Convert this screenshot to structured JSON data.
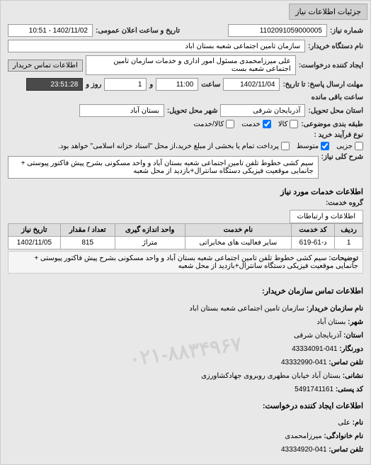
{
  "header": {
    "tab_title": "جزئیات اطلاعات نیاز"
  },
  "form": {
    "req_number_label": "شماره نیاز:",
    "req_number": "1102091059000005",
    "announce_date_label": "تاریخ و ساعت اعلان عمومی:",
    "announce_date": "1402/11/02 - 10:51",
    "buyer_org_label": "نام دستگاه خریدار:",
    "buyer_org": "سازمان تامین اجتماعی شعبه بستان اباد",
    "requester_label": "ایجاد کننده درخواست:",
    "requester": "علی میرزامحمدی مسئول امور اداری و خدمات سازمان تامین اجتماعی شعبه بست",
    "contact_btn": "اطلاعات تماس خریدار",
    "deadline_label": "مهلت ارسال پاسخ: تا تاریخ:",
    "deadline_date": "1402/11/04",
    "time_label": "ساعت",
    "deadline_time": "11:00",
    "and_label": "و",
    "days": "1",
    "days_label": "روز و",
    "countdown": "23:51:28",
    "remaining_label": "ساعت باقی مانده",
    "province_label": "استان محل تحویل:",
    "province": "آذربایجان شرقی",
    "city_label": "شهر محل تحویل:",
    "city": "بستان آباد",
    "category_label": "طبقه بندی موضوعی:",
    "cat_goods": "کالا",
    "cat_goods_svc": "کالا/خدمت",
    "cat_service": "خدمت",
    "purchase_type_label": "نوع فرآیند خرید :",
    "pt_small": "جزیی",
    "pt_medium": "متوسط",
    "pt_note": "پرداخت تمام یا بخشی از مبلغ خرید،از محل \"اسناد خزانه اسلامی\" خواهد بود.",
    "summary_label": "شرح کلی نیاز:",
    "summary": "سیم کشی خطوط تلفن تامین اجتماعی شعبه بستان آباد و واحد مسکونی بشرح پیش فاکتور پیوستی + جانمایی موقعیت فیزیکی دستگاه سانترال+بازدید از محل شعبه"
  },
  "services": {
    "title": "اطلاعات خدمات مورد نیاز",
    "group_label": "گروه خدمت:",
    "tab": "اطلاعات و ارتباطات",
    "columns": {
      "row": "ردیف",
      "code": "کد خدمت",
      "name": "نام خدمت",
      "unit": "واحد اندازه گیری",
      "qty": "تعداد / مقدار",
      "date": "تاریخ نیاز"
    },
    "rows": [
      {
        "row": "1",
        "code": "د-61-619",
        "name": "سایر فعالیت های مخابراتی",
        "unit": "متراژ",
        "qty": "815",
        "date": "1402/11/05"
      }
    ],
    "desc_label": "توضیحات:",
    "desc": "سیم کشی خطوط تلفن تامین اجتماعی شعبه بستان آباد و واحد مسکونی بشرح پیش فاکتور پیوستی + جانمایی موقعیت فیزیکی دستگاه سانترال+بازدید از محل شعبه"
  },
  "contact": {
    "title": "اطلاعات تماس سازمان خریدار:",
    "org_label": "نام سازمان خریدار:",
    "org": "سازمان تامین اجتماعی شعبه بستان اباد",
    "city_label": "شهر:",
    "city": "بستان آباد",
    "province_label": "استان:",
    "province": "آذربایجان شرقی",
    "fax_label": "دورنگار:",
    "fax": "041-43334091",
    "phone_label": "تلفن تماس:",
    "phone": "041-43332990",
    "address_label": "نشانی:",
    "address": "بستان آباد خیابان مطهری روبروی جهادکشاورزی",
    "postal_label": "کد پستی:",
    "postal": "5491741161",
    "creator_title": "اطلاعات ایجاد کننده درخواست:",
    "fname_label": "نام:",
    "fname": "علی",
    "lname_label": "نام خانوادگی:",
    "lname": "میرزامحمدی",
    "cphone_label": "تلفن تماس:",
    "cphone": "041-43334920",
    "watermark": "۰۲۱-۸۸۳۴۹۶۷"
  }
}
